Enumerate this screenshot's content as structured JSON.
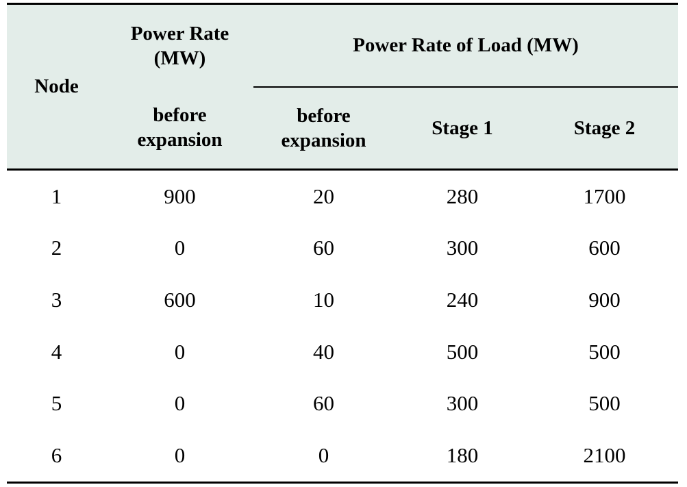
{
  "table": {
    "header": {
      "node": "Node",
      "power_rate_line1": "Power Rate",
      "power_rate_line2": "(MW)",
      "load_group": "Power Rate of Load (MW)",
      "before_line1": "before",
      "before_line2": "expansion",
      "load_before_line1": "before",
      "load_before_line2": "expansion",
      "stage1": "Stage 1",
      "stage2": "Stage 2"
    },
    "rows": [
      {
        "node": "1",
        "power_before": "900",
        "load_before": "20",
        "stage1": "280",
        "stage2": "1700"
      },
      {
        "node": "2",
        "power_before": "0",
        "load_before": "60",
        "stage1": "300",
        "stage2": "600"
      },
      {
        "node": "3",
        "power_before": "600",
        "load_before": "10",
        "stage1": "240",
        "stage2": "900"
      },
      {
        "node": "4",
        "power_before": "0",
        "load_before": "40",
        "stage1": "500",
        "stage2": "500"
      },
      {
        "node": "5",
        "power_before": "0",
        "load_before": "60",
        "stage1": "300",
        "stage2": "500"
      },
      {
        "node": "6",
        "power_before": "0",
        "load_before": "0",
        "stage1": "180",
        "stage2": "2100"
      }
    ]
  }
}
